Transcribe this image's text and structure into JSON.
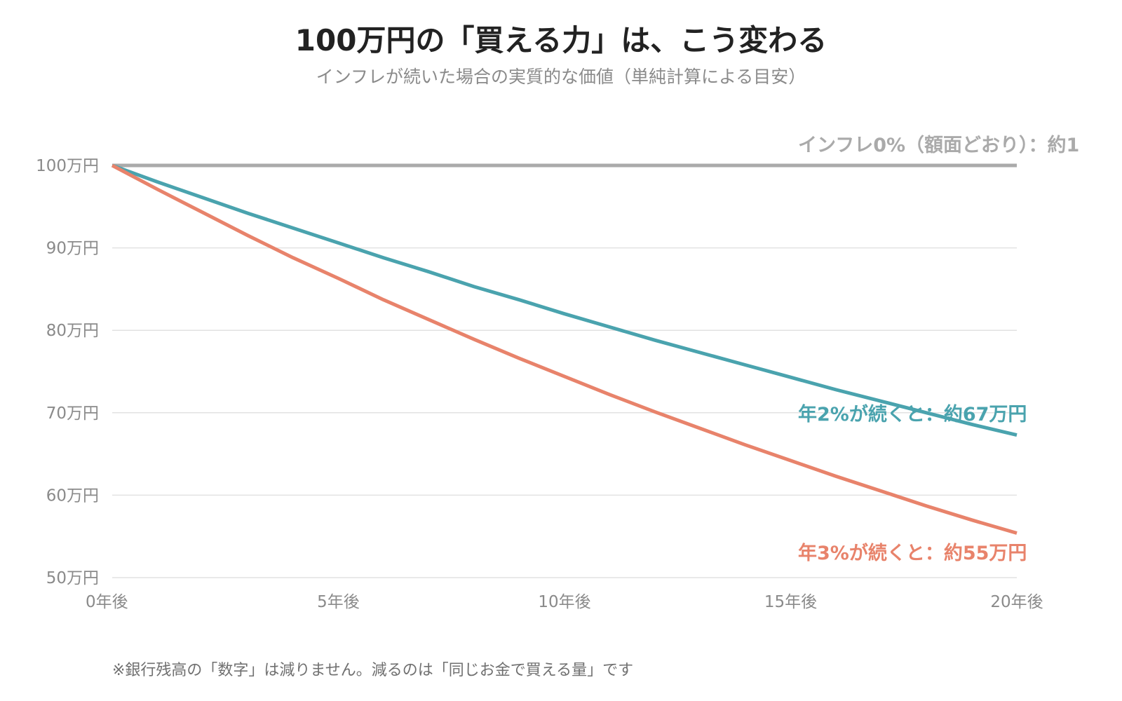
{
  "title": "100万円の「買える力」は、こう変わる",
  "subtitle": "インフレが続いた場合の実質的な価値（単純計算による目安）",
  "footnote": "※銀行残高の「数字」は減りません。減るのは「同じお金で買える量」です",
  "chart_data": {
    "type": "line",
    "x": [
      0,
      1,
      2,
      3,
      4,
      5,
      6,
      7,
      8,
      9,
      10,
      11,
      12,
      13,
      14,
      15,
      16,
      17,
      18,
      19,
      20
    ],
    "xticks": [
      0,
      5,
      10,
      15,
      20
    ],
    "xtick_labels": [
      "0年後",
      "5年後",
      "10年後",
      "15年後",
      "20年後"
    ],
    "ylim": [
      50,
      100
    ],
    "yticks": [
      50,
      60,
      70,
      80,
      90,
      100
    ],
    "ytick_labels": [
      "50万円",
      "60万円",
      "70万円",
      "80万円",
      "90万円",
      "100万円"
    ],
    "grid": "horizontal",
    "series": [
      {
        "name": "インフレ0%（額面どおり）：約1",
        "color": "#aaaaaa",
        "values": [
          100,
          100,
          100,
          100,
          100,
          100,
          100,
          100,
          100,
          100,
          100,
          100,
          100,
          100,
          100,
          100,
          100,
          100,
          100,
          100,
          100
        ]
      },
      {
        "name": "年2%が続くと：約67万円",
        "color": "#4aa3ae",
        "values": [
          100,
          98.0,
          96.1,
          94.2,
          92.4,
          90.6,
          88.8,
          87.1,
          85.3,
          83.7,
          82.0,
          80.4,
          78.8,
          77.3,
          75.8,
          74.3,
          72.8,
          71.4,
          70.0,
          68.6,
          67.3
        ]
      },
      {
        "name": "年3%が続くと：約55万円",
        "color": "#e8836b",
        "values": [
          100,
          97.1,
          94.3,
          91.5,
          88.8,
          86.3,
          83.7,
          81.3,
          78.9,
          76.6,
          74.4,
          72.2,
          70.1,
          68.1,
          66.1,
          64.2,
          62.3,
          60.5,
          58.7,
          57.0,
          55.4
        ]
      }
    ]
  }
}
